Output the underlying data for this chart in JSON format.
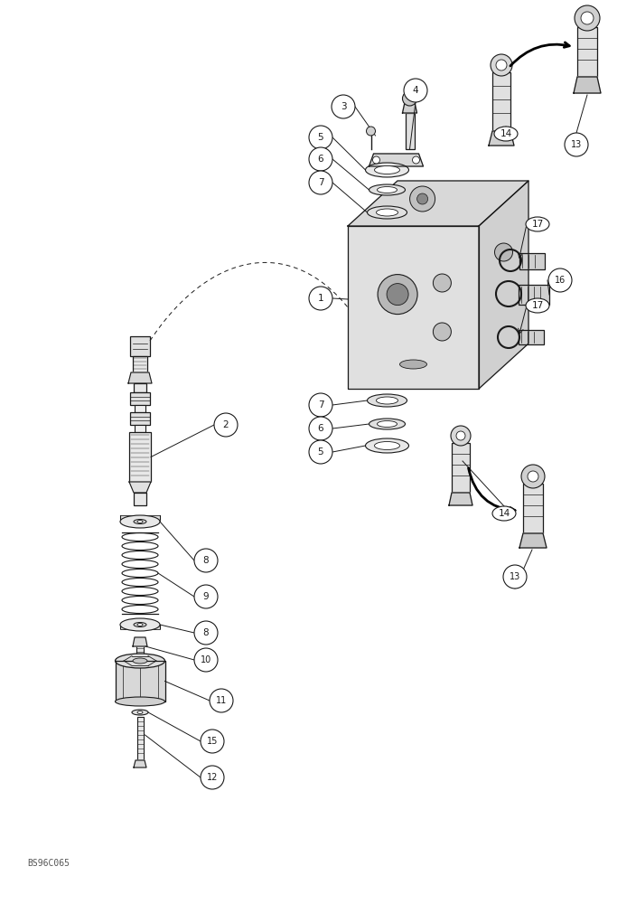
{
  "bg_color": "#ffffff",
  "line_color": "#1a1a1a",
  "fig_width": 7.04,
  "fig_height": 10.0,
  "watermark": "BS96C065",
  "dpi": 100
}
